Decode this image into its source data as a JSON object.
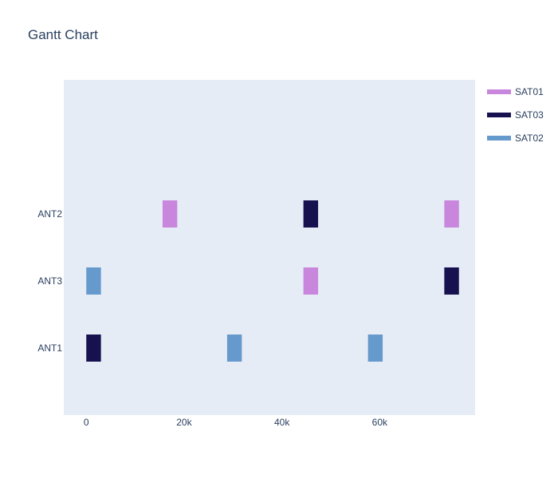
{
  "chart_data": {
    "type": "gantt",
    "title": "Gantt Chart",
    "xlabel": "",
    "ylabel": "",
    "x_range": [
      -4600,
      79500
    ],
    "x_ticks": [
      {
        "value": 0,
        "label": "0"
      },
      {
        "value": 20000,
        "label": "20k"
      },
      {
        "value": 40000,
        "label": "40k"
      },
      {
        "value": 60000,
        "label": "60k"
      }
    ],
    "y_categories": [
      "ANT2",
      "ANT3",
      "ANT1"
    ],
    "grid": false,
    "legend_position": "top-right",
    "series": [
      {
        "name": "SAT01",
        "color": "#c986dd",
        "tasks": [
          {
            "resource": "ANT2",
            "start": 15600,
            "end": 18600
          },
          {
            "resource": "ANT2",
            "start": 73200,
            "end": 76200
          },
          {
            "resource": "ANT3",
            "start": 44400,
            "end": 47400
          }
        ]
      },
      {
        "name": "SAT03",
        "color": "#17124f",
        "tasks": [
          {
            "resource": "ANT2",
            "start": 44400,
            "end": 47400
          },
          {
            "resource": "ANT3",
            "start": 73200,
            "end": 76200
          },
          {
            "resource": "ANT1",
            "start": 0,
            "end": 3000
          }
        ]
      },
      {
        "name": "SAT02",
        "color": "#6699cc",
        "tasks": [
          {
            "resource": "ANT3",
            "start": 0,
            "end": 3000
          },
          {
            "resource": "ANT1",
            "start": 28800,
            "end": 31800
          },
          {
            "resource": "ANT1",
            "start": 57600,
            "end": 60600
          }
        ]
      }
    ]
  }
}
